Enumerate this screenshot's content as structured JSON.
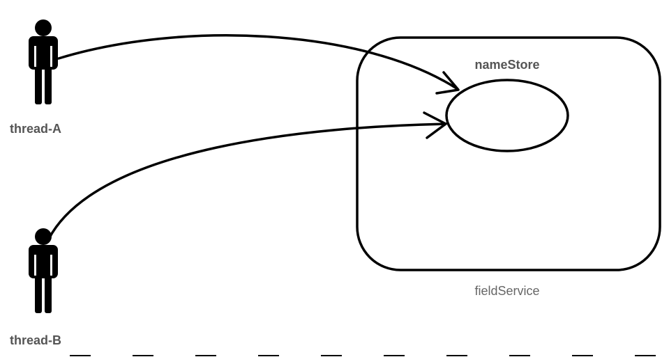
{
  "actors": [
    {
      "label": "thread-A",
      "icon": "person-icon"
    },
    {
      "label": "thread-B",
      "icon": "person-icon"
    }
  ],
  "service": {
    "label": "fieldService"
  },
  "store": {
    "label": "nameStore"
  },
  "colors": {
    "stroke": "#000000",
    "label": "#555555",
    "background": "#ffffff"
  }
}
